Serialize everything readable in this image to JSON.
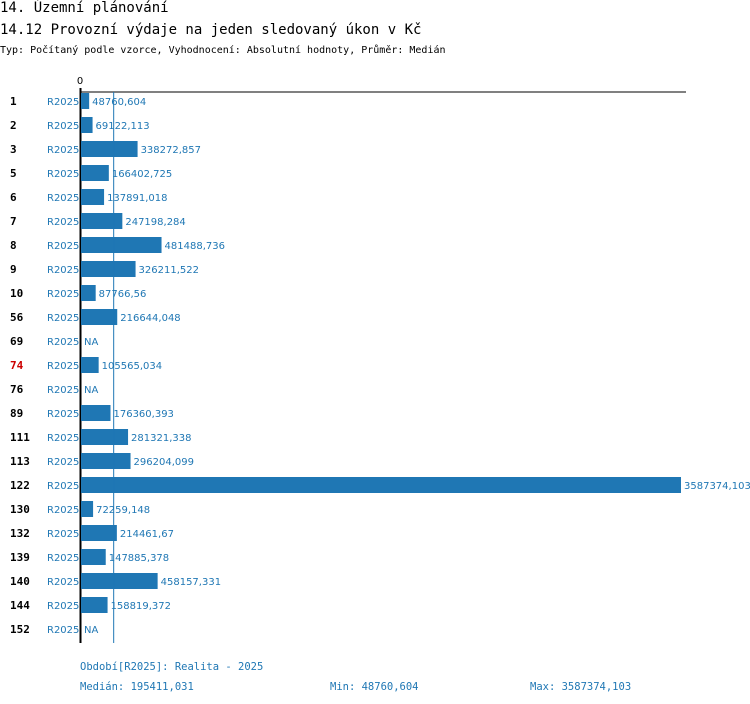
{
  "header": {
    "title": "14. Územní plánování",
    "subtitle": "14.12 Provozní výdaje na jeden sledovaný úkon v Kč",
    "type_line": "Typ: Počítaný podle vzorce, Vyhodnocení: Absolutní hodnoty, Průměr: Medián"
  },
  "colors": {
    "bar": "#1f77b4",
    "text": "#000000",
    "highlight": "#cc0000",
    "axis": "#000000"
  },
  "chart_data": {
    "type": "bar",
    "orientation": "horizontal",
    "axis_zero_label": "0",
    "period_label": "R2025",
    "highlight_category": "74",
    "categories": [
      "1",
      "2",
      "3",
      "5",
      "6",
      "7",
      "8",
      "9",
      "10",
      "56",
      "69",
      "74",
      "76",
      "89",
      "111",
      "113",
      "122",
      "130",
      "132",
      "139",
      "140",
      "144",
      "152"
    ],
    "values": [
      48760.604,
      69122.113,
      338272.857,
      166402.725,
      137891.018,
      247198.284,
      481488.736,
      326211.522,
      87766.56,
      216644.048,
      null,
      105565.034,
      null,
      176360.393,
      281321.338,
      296204.099,
      3587374.103,
      72259.148,
      214461.67,
      147885.378,
      458157.331,
      158819.372,
      null
    ],
    "value_labels": [
      "48760,604",
      "69122,113",
      "338272,857",
      "166402,725",
      "137891,018",
      "247198,284",
      "481488,736",
      "326211,522",
      "87766,56",
      "216644,048",
      "NA",
      "105565,034",
      "NA",
      "176360,393",
      "281321,338",
      "296204,099",
      "3587374,103",
      "72259,148",
      "214461,67",
      "147885,378",
      "458157,331",
      "158819,372",
      "NA"
    ],
    "median": 195411.031,
    "xlim": [
      0,
      3587374.103
    ]
  },
  "footer": {
    "period_text": "Období[R2025]: Realita - 2025",
    "median_text": "Medián: 195411,031",
    "min_text": "Min: 48760,604",
    "max_text": "Max: 3587374,103"
  }
}
